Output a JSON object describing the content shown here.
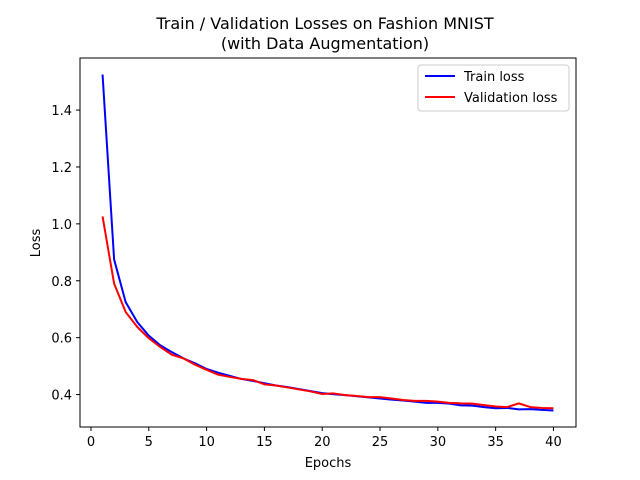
{
  "chart_data": {
    "type": "line",
    "title": "Train / Validation Losses on Fashion MNIST",
    "subtitle": "(with Data Augmentation)",
    "xlabel": "Epochs",
    "ylabel": "Loss",
    "xlim": [
      -0.95,
      41.95
    ],
    "ylim": [
      0.286,
      1.583
    ],
    "xticks": [
      0,
      5,
      10,
      15,
      20,
      25,
      30,
      35,
      40
    ],
    "yticks": [
      0.4,
      0.6,
      0.8,
      1.0,
      1.2,
      1.4
    ],
    "xtick_labels": [
      "0",
      "5",
      "10",
      "15",
      "20",
      "25",
      "30",
      "35",
      "40"
    ],
    "ytick_labels": [
      "0.4",
      "0.6",
      "0.8",
      "1.0",
      "1.2",
      "1.4"
    ],
    "grid": false,
    "legend_position": "top-right",
    "x": [
      1,
      2,
      3,
      4,
      5,
      6,
      7,
      8,
      9,
      10,
      11,
      12,
      13,
      14,
      15,
      16,
      17,
      18,
      19,
      20,
      21,
      22,
      23,
      24,
      25,
      26,
      27,
      28,
      29,
      30,
      31,
      32,
      33,
      34,
      35,
      36,
      37,
      38,
      39,
      40
    ],
    "series": [
      {
        "name": "Train loss",
        "color": "#0000ff",
        "values": [
          1.525,
          0.875,
          0.725,
          0.655,
          0.607,
          0.573,
          0.549,
          0.527,
          0.51,
          0.49,
          0.477,
          0.466,
          0.455,
          0.448,
          0.44,
          0.432,
          0.426,
          0.419,
          0.412,
          0.405,
          0.401,
          0.398,
          0.394,
          0.39,
          0.386,
          0.382,
          0.379,
          0.375,
          0.371,
          0.371,
          0.368,
          0.362,
          0.361,
          0.356,
          0.352,
          0.353,
          0.348,
          0.349,
          0.346,
          0.344
        ]
      },
      {
        "name": "Validation loss",
        "color": "#ff0000",
        "values": [
          1.026,
          0.79,
          0.69,
          0.638,
          0.598,
          0.567,
          0.54,
          0.527,
          0.505,
          0.487,
          0.47,
          0.462,
          0.455,
          0.451,
          0.436,
          0.432,
          0.425,
          0.418,
          0.411,
          0.402,
          0.404,
          0.398,
          0.395,
          0.391,
          0.391,
          0.386,
          0.381,
          0.378,
          0.378,
          0.375,
          0.371,
          0.369,
          0.368,
          0.363,
          0.358,
          0.356,
          0.369,
          0.356,
          0.353,
          0.352
        ]
      }
    ]
  }
}
